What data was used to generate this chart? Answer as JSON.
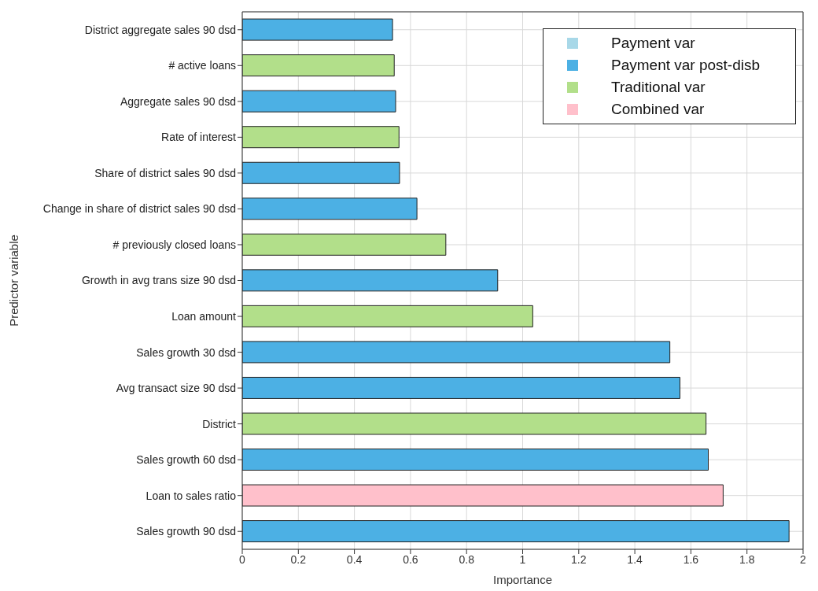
{
  "chart_data": {
    "type": "bar",
    "orientation": "horizontal",
    "stacked": true,
    "xlabel": "Importance",
    "ylabel": "Predictor variable",
    "categories": [
      "District aggregate sales 90 dsd",
      "# active loans",
      "Aggregate sales 90 dsd",
      "Rate of interest",
      "Share of district sales 90 dsd",
      "Change in share of district sales 90 dsd",
      "# previously closed loans",
      "Growth in avg trans size 90 dsd",
      "Loan amount",
      "Sales growth 30 dsd",
      "Avg transact size 90 dsd",
      "District",
      "Sales growth 60 dsd",
      "Loan to sales ratio",
      "Sales growth 90 dsd"
    ],
    "series": [
      {
        "name": "Payment var",
        "color": "#a8d8e8",
        "values": [
          null,
          null,
          null,
          null,
          null,
          null,
          null,
          null,
          null,
          null,
          null,
          null,
          null,
          null,
          null
        ]
      },
      {
        "name": "Payment var post-disb",
        "color": "#4cb0e4",
        "values": [
          0.536,
          null,
          0.547,
          null,
          0.561,
          0.623,
          null,
          0.911,
          null,
          1.525,
          1.561,
          null,
          1.662,
          null,
          1.95
        ]
      },
      {
        "name": "Traditional var",
        "color": "#b2df8a",
        "values": [
          null,
          0.542,
          null,
          0.559,
          null,
          null,
          0.726,
          null,
          1.036,
          null,
          null,
          1.654,
          null,
          null,
          null
        ]
      },
      {
        "name": "Combined var",
        "color": "#ffc0cb",
        "values": [
          null,
          null,
          null,
          null,
          null,
          null,
          null,
          null,
          null,
          null,
          null,
          null,
          null,
          1.715,
          null
        ]
      }
    ],
    "xlim": [
      0,
      2
    ],
    "xticks": [
      0,
      0.2,
      0.4,
      0.6,
      0.8,
      1,
      1.2,
      1.4,
      1.6,
      1.8,
      2
    ],
    "grid": true,
    "legend": "top right"
  }
}
